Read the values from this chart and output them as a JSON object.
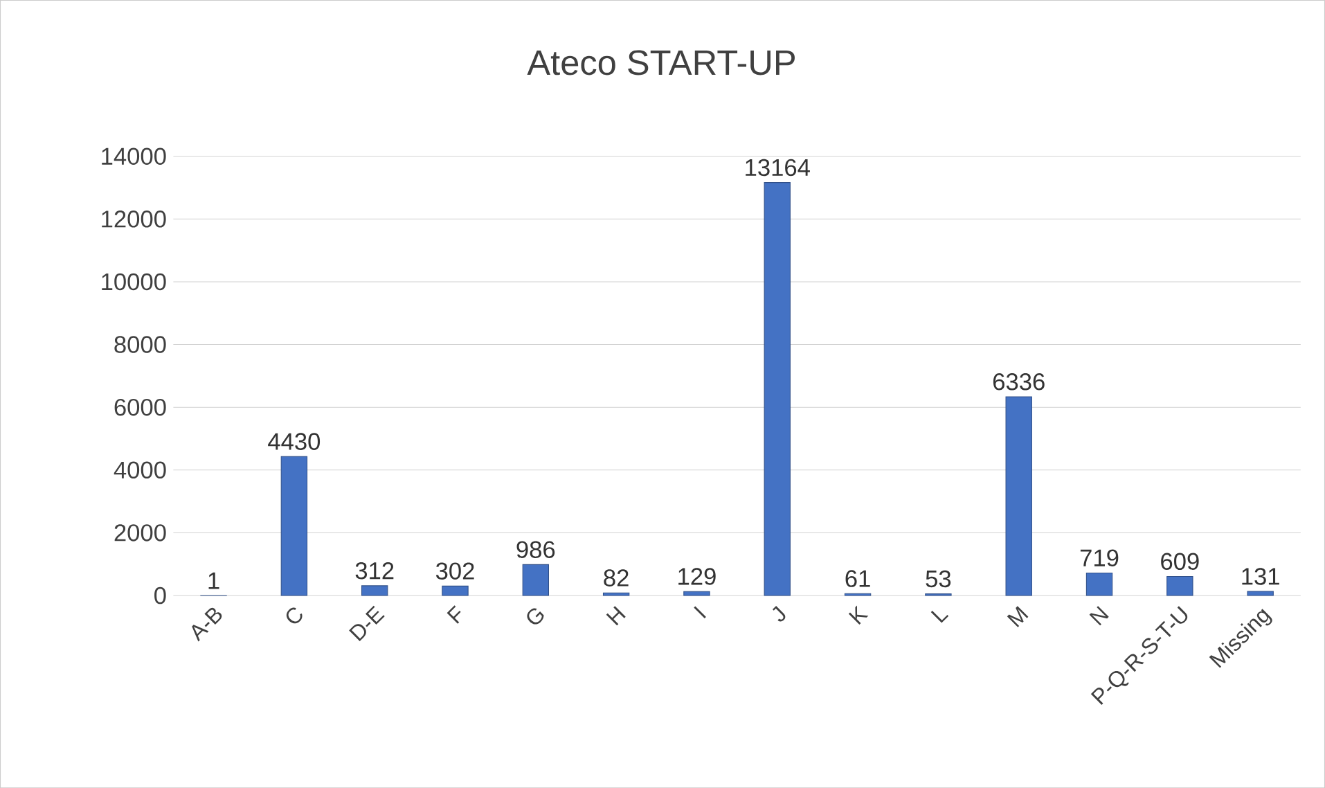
{
  "chart_data": {
    "type": "bar",
    "title": "Ateco START-UP",
    "categories": [
      "A-B",
      "C",
      "D-E",
      "F",
      "G",
      "H",
      "I",
      "J",
      "K",
      "L",
      "M",
      "N",
      "P-Q-R-S-T-U",
      "Missing"
    ],
    "values": [
      1,
      4430,
      312,
      302,
      986,
      82,
      129,
      13164,
      61,
      53,
      6336,
      719,
      609,
      131
    ],
    "color": "#4472c4",
    "ylim": [
      0,
      14000
    ],
    "yticks": [
      0,
      2000,
      4000,
      6000,
      8000,
      10000,
      12000,
      14000
    ],
    "grid": true,
    "data_labels": true
  }
}
